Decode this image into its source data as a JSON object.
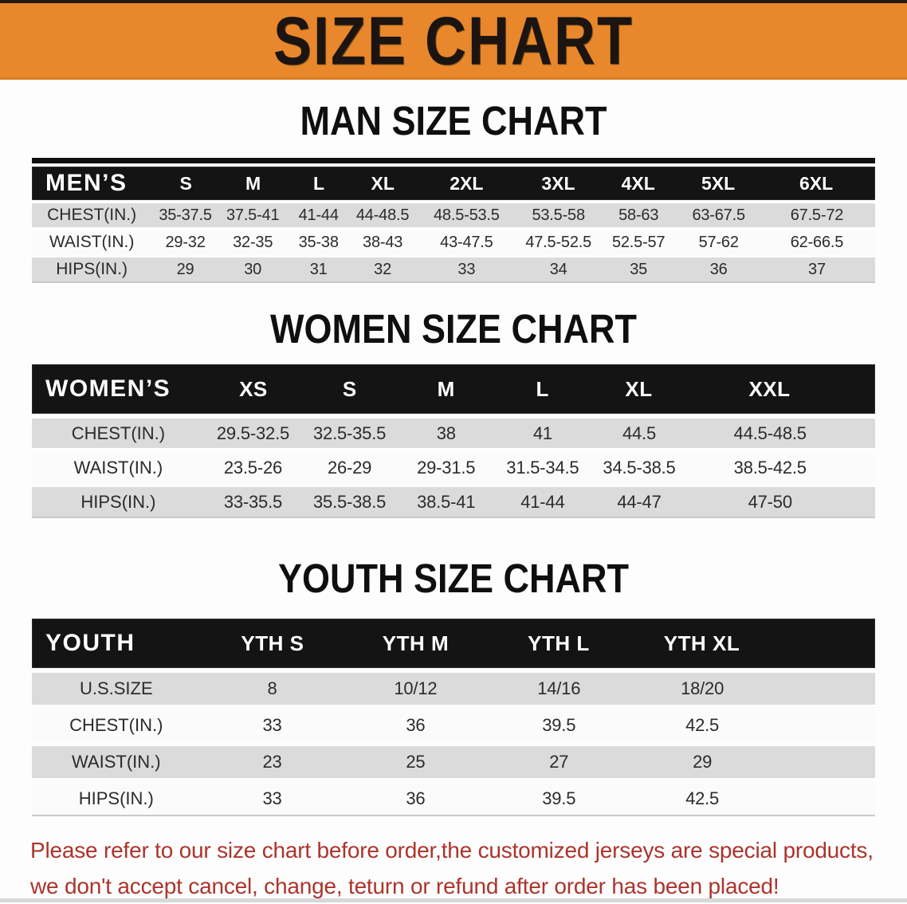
{
  "banner": {
    "title": "SIZE CHART",
    "bg_color": "#E8872C"
  },
  "sections": [
    {
      "id": "men",
      "heading": "MAN SIZE CHART",
      "table": {
        "header_label": "MEN’S",
        "sizes": [
          "S",
          "M",
          "L",
          "XL",
          "2XL",
          "3XL",
          "4XL",
          "5XL",
          "6XL"
        ],
        "rows": [
          {
            "label": "CHEST(IN.)",
            "values": [
              "35-37.5",
              "37.5-41",
              "41-44",
              "44-48.5",
              "48.5-53.5",
              "53.5-58",
              "58-63",
              "63-67.5",
              "67.5-72"
            ]
          },
          {
            "label": "WAIST(IN.)",
            "values": [
              "29-32",
              "32-35",
              "35-38",
              "38-43",
              "43-47.5",
              "47.5-52.5",
              "52.5-57",
              "57-62",
              "62-66.5"
            ]
          },
          {
            "label": "HIPS(IN.)",
            "values": [
              "29",
              "30",
              "31",
              "32",
              "33",
              "34",
              "35",
              "36",
              "37"
            ]
          }
        ]
      }
    },
    {
      "id": "women",
      "heading": "WOMEN SIZE CHART",
      "table": {
        "header_label": "WOMEN’S",
        "sizes": [
          "XS",
          "S",
          "M",
          "L",
          "XL",
          "XXL"
        ],
        "rows": [
          {
            "label": "CHEST(IN.)",
            "values": [
              "29.5-32.5",
              "32.5-35.5",
              "38",
              "41",
              "44.5",
              "44.5-48.5"
            ]
          },
          {
            "label": "WAIST(IN.)",
            "values": [
              "23.5-26",
              "26-29",
              "29-31.5",
              "31.5-34.5",
              "34.5-38.5",
              "38.5-42.5"
            ]
          },
          {
            "label": "HIPS(IN.)",
            "values": [
              "33-35.5",
              "35.5-38.5",
              "38.5-41",
              "41-44",
              "44-47",
              "47-50"
            ]
          }
        ]
      }
    },
    {
      "id": "youth",
      "heading": "YOUTH SIZE CHART",
      "table": {
        "header_label": "YOUTH",
        "sizes": [
          "YTH S",
          "YTH M",
          "YTH L",
          "YTH XL"
        ],
        "rows": [
          {
            "label": "U.S.SIZE",
            "values": [
              "8",
              "10/12",
              "14/16",
              "18/20"
            ]
          },
          {
            "label": "CHEST(IN.)",
            "values": [
              "33",
              "36",
              "39.5",
              "42.5"
            ]
          },
          {
            "label": "WAIST(IN.)",
            "values": [
              "23",
              "25",
              "27",
              "29"
            ]
          },
          {
            "label": "HIPS(IN.)",
            "values": [
              "33",
              "36",
              "39.5",
              "42.5"
            ]
          }
        ]
      }
    }
  ],
  "footer_note": {
    "color": "#AC342C",
    "lines": [
      "Please refer to our size chart before order,the customized jerseys are special products,",
      "we don't accept cancel, change, teturn or refund after order has been placed!"
    ]
  }
}
